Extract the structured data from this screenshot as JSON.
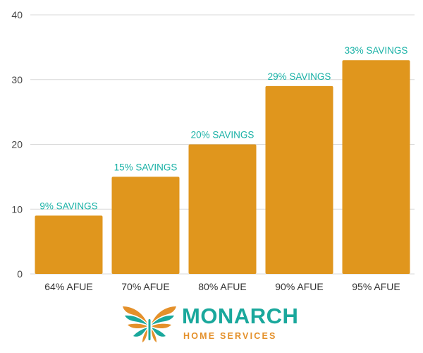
{
  "colors": {
    "bar": "#e0961d",
    "data_label": "#19b1a6",
    "grid": "#d9d9d9",
    "brand_teal": "#1aa89c",
    "brand_orange": "#e4902a"
  },
  "chart_data": {
    "type": "bar",
    "categories": [
      "64% AFUE",
      "70% AFUE",
      "80% AFUE",
      "90% AFUE",
      "95% AFUE"
    ],
    "values": [
      9,
      15,
      20,
      29,
      33
    ],
    "data_labels": [
      "9% SAVINGS",
      "15% SAVINGS",
      "20% SAVINGS",
      "29% SAVINGS",
      "33% SAVINGS"
    ],
    "ylim": [
      0,
      40
    ],
    "yticks": [
      0,
      10,
      20,
      30,
      40
    ],
    "grid": true,
    "legend": "none"
  },
  "logo": {
    "name": "MONARCH",
    "tagline": "HOME SERVICES",
    "icon": "butterfly-icon"
  }
}
